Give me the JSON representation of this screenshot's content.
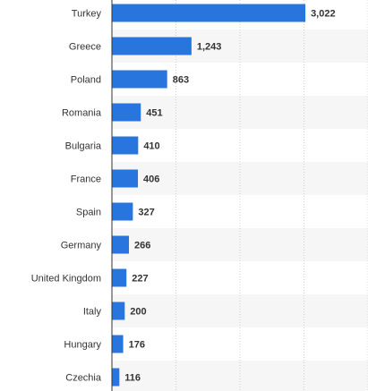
{
  "chart_data": {
    "type": "bar",
    "orientation": "horizontal",
    "categories": [
      "Turkey",
      "Greece",
      "Poland",
      "Romania",
      "Bulgaria",
      "France",
      "Spain",
      "Germany",
      "United Kingdom",
      "Italy",
      "Hungary",
      "Czechia"
    ],
    "values": [
      3022,
      1243,
      863,
      451,
      410,
      406,
      327,
      266,
      227,
      200,
      176,
      116
    ],
    "value_labels": [
      "3,022",
      "1,243",
      "863",
      "451",
      "410",
      "406",
      "327",
      "266",
      "227",
      "200",
      "176",
      "116"
    ],
    "xlim": [
      0,
      4000
    ],
    "grid": true,
    "legend": "none",
    "colors": {
      "bar": "#2876dd",
      "row_band": "#f6f6f6",
      "grid": "#cfcfcf",
      "axis": "#333333",
      "text": "#333333"
    }
  }
}
